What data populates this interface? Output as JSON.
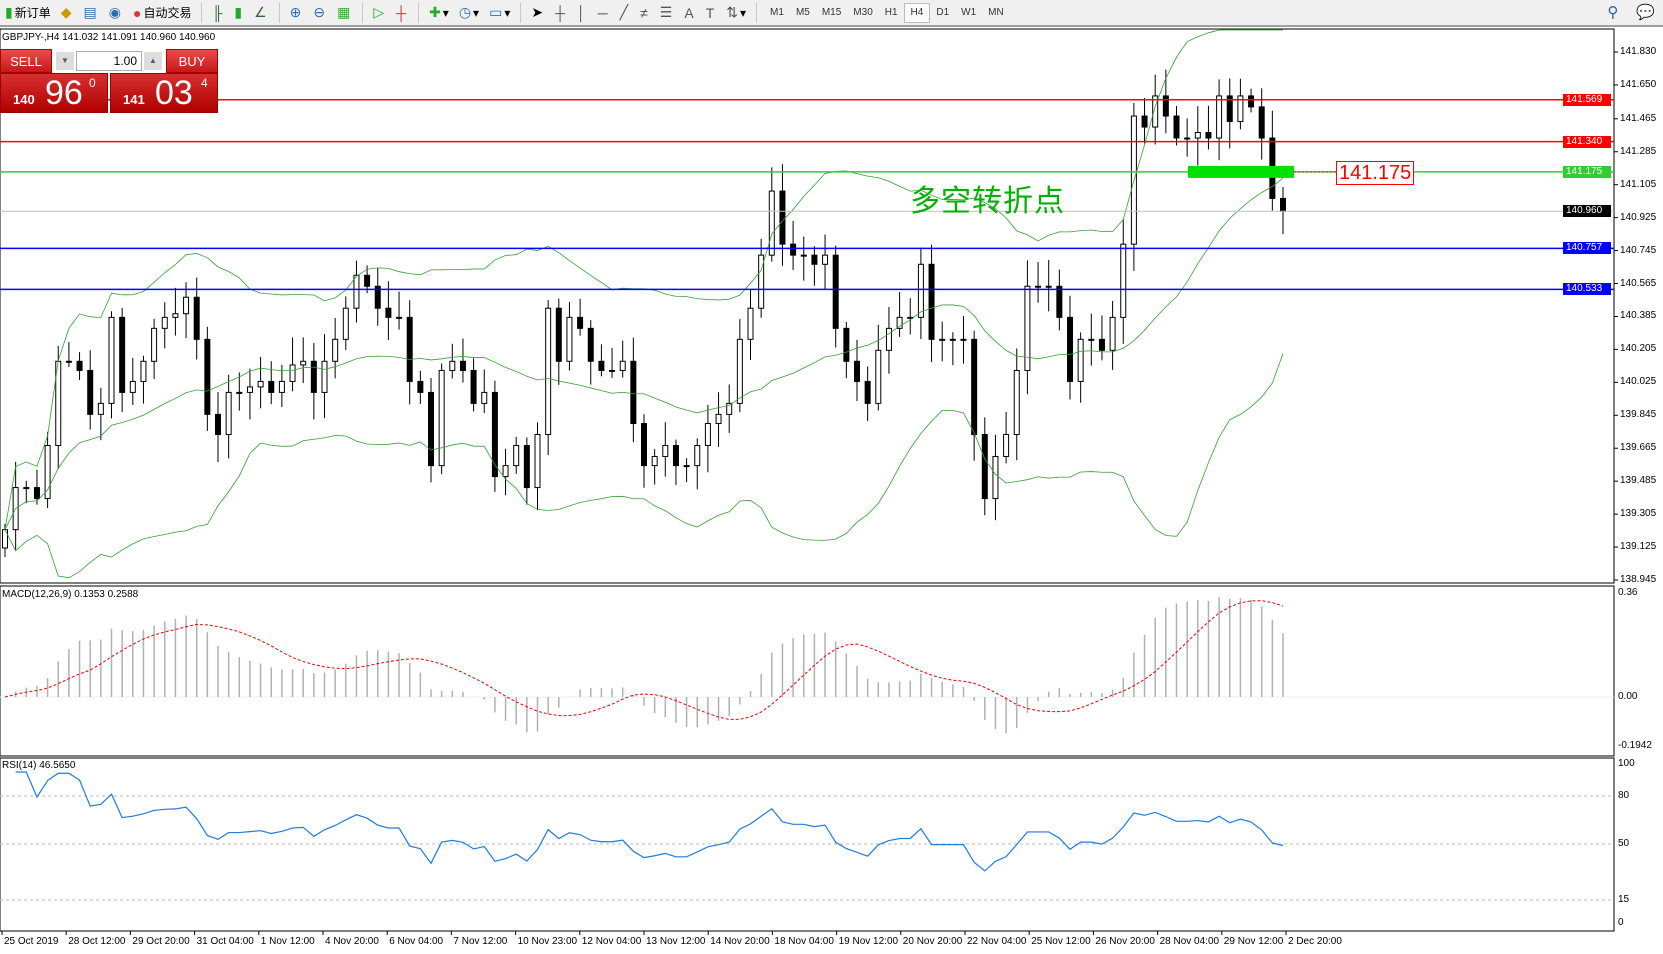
{
  "toolbar": {
    "new_order": "新订单",
    "auto_trade": "自动交易",
    "timeframes": [
      "M1",
      "M5",
      "M15",
      "M30",
      "H1",
      "H4",
      "D1",
      "W1",
      "MN"
    ],
    "active_timeframe": "H4"
  },
  "chart": {
    "header": "GBPJPY-,H4  141.032 141.091 140.960 140.960",
    "current_price": "140.960"
  },
  "trade_panel": {
    "sell": "SELL",
    "buy": "BUY",
    "lot": "1.00",
    "sell_small": "140",
    "sell_big": "96",
    "sell_pip": "0",
    "buy_small": "141",
    "buy_big": "03",
    "buy_pip": "4"
  },
  "annotation": {
    "text": "多空转折点",
    "price": "141.175"
  },
  "levels": [
    {
      "price": "141.569",
      "color": "#ff0000"
    },
    {
      "price": "141.340",
      "color": "#ff0000"
    },
    {
      "price": "141.175",
      "color": "#33cc33"
    },
    {
      "price": "140.757",
      "color": "#0000ff"
    },
    {
      "price": "140.533",
      "color": "#0000ff"
    }
  ],
  "price_axis": [
    "141.830",
    "141.650",
    "141.465",
    "141.285",
    "141.105",
    "140.925",
    "140.745",
    "140.565",
    "140.385",
    "140.205",
    "140.025",
    "139.845",
    "139.665",
    "139.485",
    "139.305",
    "139.125",
    "138.945"
  ],
  "macd": {
    "label": "MACD(12,26,9) 0.1353 0.2588",
    "axis": [
      "0.36",
      "0.00",
      "-0.1942"
    ]
  },
  "rsi": {
    "label": "RSI(14) 46.5650",
    "axis": [
      "100",
      "80",
      "50",
      "15",
      "0"
    ]
  },
  "date_axis": [
    "25 Oct 2019",
    "28 Oct 12:00",
    "29 Oct 20:00",
    "31 Oct 04:00",
    "1 Nov 12:00",
    "4 Nov 20:00",
    "6 Nov 04:00",
    "7 Nov 12:00",
    "10 Nov 23:00",
    "12 Nov 04:00",
    "13 Nov 12:00",
    "14 Nov 20:00",
    "18 Nov 04:00",
    "19 Nov 12:00",
    "20 Nov 20:00",
    "22 Nov 04:00",
    "25 Nov 12:00",
    "26 Nov 20:00",
    "28 Nov 04:00",
    "29 Nov 12:00",
    "2 Dec 20:00"
  ],
  "chart_data": {
    "type": "candlestick",
    "symbol": "GBPJPY",
    "timeframe": "H4",
    "ylim": [
      138.945,
      141.83
    ],
    "closes": [
      139.22,
      139.45,
      139.45,
      139.39,
      139.68,
      140.14,
      140.14,
      140.09,
      139.85,
      139.91,
      140.38,
      139.97,
      140.03,
      140.14,
      140.32,
      140.38,
      140.4,
      140.49,
      140.26,
      139.85,
      139.74,
      139.97,
      139.97,
      140.0,
      140.03,
      139.97,
      140.03,
      140.12,
      140.14,
      139.97,
      140.14,
      140.26,
      140.43,
      140.61,
      140.55,
      140.43,
      140.38,
      140.38,
      140.03,
      139.97,
      139.57,
      140.09,
      140.14,
      140.09,
      139.91,
      139.97,
      139.51,
      139.57,
      139.68,
      139.45,
      139.74,
      140.43,
      140.14,
      140.38,
      140.32,
      140.14,
      140.09,
      140.09,
      140.14,
      139.8,
      139.57,
      139.62,
      139.68,
      139.57,
      139.57,
      139.68,
      139.8,
      139.85,
      139.91,
      140.26,
      140.43,
      140.72,
      141.07,
      140.78,
      140.72,
      140.72,
      140.67,
      140.72,
      140.32,
      140.14,
      140.03,
      139.91,
      140.2,
      140.32,
      140.38,
      140.38,
      140.67,
      140.26,
      140.26,
      140.26,
      140.26,
      139.74,
      139.39,
      139.62,
      139.74,
      140.09,
      140.55,
      140.55,
      140.55,
      140.38,
      140.03,
      140.26,
      140.26,
      140.2,
      140.38,
      140.78,
      141.48,
      141.42,
      141.59,
      141.48,
      141.36,
      141.36,
      141.39,
      141.36,
      141.59,
      141.45,
      141.59,
      141.53,
      141.36,
      141.03,
      140.96
    ]
  }
}
